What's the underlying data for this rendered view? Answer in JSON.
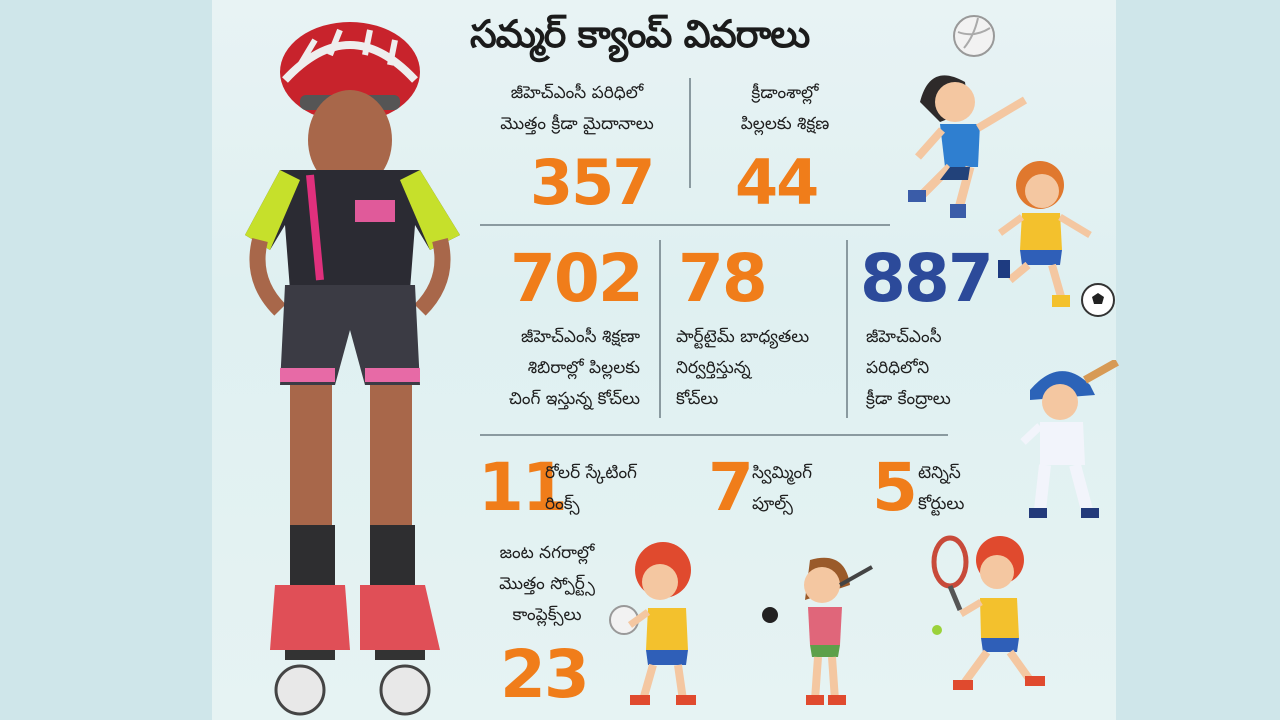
{
  "title": "సమ్మర్ క్యాంప్ వివరాలు",
  "colors": {
    "orange": "#f07d1a",
    "blue": "#2c4a9a",
    "text": "#1e1e1e"
  },
  "stats": {
    "grounds": {
      "value": "357",
      "label_line1": "జీహెచ్ఎంసీ పరిధిలో",
      "label_line2": "మొత్తం క్రీడా మైదానాలు"
    },
    "sports_kids": {
      "value": "44",
      "label_line1": "క్రీడాంశాల్లో",
      "label_line2": "పిల్లలకు శిక్షణ"
    },
    "coaches": {
      "value": "702",
      "label_line1": "జీహెచ్ఎంసీ శిక్షణా",
      "label_line2": "శిబిరాల్లో పిల్లలకు",
      "label_line3": "చింగ్ ఇస్తున్న కోచ్‌లు"
    },
    "parttime": {
      "value": "78",
      "label_line1": "పార్ట్‌టైమ్ బాధ్యతలు",
      "label_line2": "నిర్వర్తిస్తున్న",
      "label_line3": "కోచ్‌లు"
    },
    "centers": {
      "value": "887",
      "label_line1": "జీహెచ్ఎంసీ",
      "label_line2": "పరిధిలోని",
      "label_line3": "క్రీడా కేంద్రాలు"
    },
    "rinks": {
      "value": "11",
      "label_line1": "రోలర్ స్కేటింగ్",
      "label_line2": "రింక్స్"
    },
    "pools": {
      "value": "7",
      "label_line1": "స్విమ్మింగ్",
      "label_line2": "పూల్స్"
    },
    "tennis": {
      "value": "5",
      "label_line1": "టెన్నిస్",
      "label_line2": "కోర్టులు"
    },
    "complexes": {
      "value": "23",
      "label_line1": "జంట నగరాల్లో",
      "label_line2": "మొత్తం స్పోర్ట్స్",
      "label_line3": "కాంప్లెక్స్‌లు"
    }
  },
  "icons": [
    "skater-girl-photo",
    "volleyball-icon",
    "soccer-girl-icon",
    "soccer-ball-icon",
    "baseball-boy-icon",
    "volleyball-boy-icon",
    "golf-girl-icon",
    "tennis-boy-icon"
  ]
}
